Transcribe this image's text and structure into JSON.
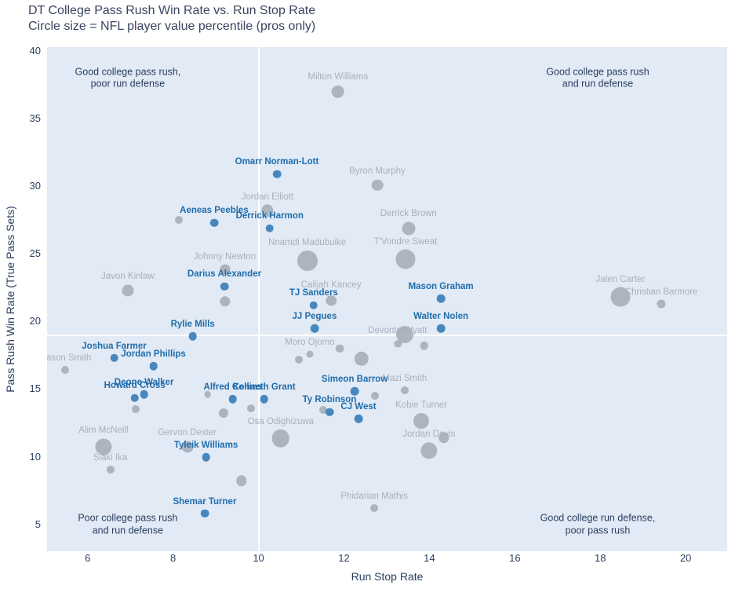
{
  "title": "DT College Pass Rush Win Rate vs. Run Stop Rate",
  "subtitle": "Circle size = NFL player value percentile (pros only)",
  "chart_data": {
    "type": "scatter",
    "xlabel": "Run Stop Rate",
    "ylabel": "Pass Rush Win Rate (True Pass Sets)",
    "x_range": [
      5.05,
      20.97
    ],
    "y_range": [
      3.0,
      40.3
    ],
    "x_ticks": [
      6,
      8,
      10,
      12,
      14,
      16,
      18,
      20
    ],
    "y_ticks": [
      5,
      10,
      15,
      20,
      25,
      30,
      35,
      40
    ],
    "grid": false,
    "legend": "none",
    "dividers": {
      "x": 10.0,
      "y": 19.0
    },
    "colors": {
      "plot_bg": "#e1eaf5",
      "prospect_dot": "#4787bd",
      "pro_dot": "#a2aab5",
      "prospect_label": "#1f6cab",
      "pro_label": "#a9b0bc",
      "axis_text": "#2a3f5f",
      "divider_line": "#ffffff"
    },
    "annotations": [
      {
        "text": "Good college pass rush,\npoor run defense",
        "x": 6.94,
        "y": 38.0
      },
      {
        "text": "Good college pass rush\nand run defense",
        "x": 17.94,
        "y": 38.0
      },
      {
        "text": "Poor college pass rush\nand run defense",
        "x": 6.94,
        "y": 4.95
      },
      {
        "text": "Good college run defense,\npoor pass rush",
        "x": 17.94,
        "y": 4.95
      }
    ],
    "points": [
      {
        "name": "Milton Williams",
        "group": "pro",
        "x": 11.86,
        "y": 37.0,
        "r": 8.3
      },
      {
        "name": "Byron Murphy",
        "group": "pro",
        "x": 12.78,
        "y": 30.1,
        "r": 7.3
      },
      {
        "name": "Jordan Elliott",
        "group": "pro",
        "x": 10.21,
        "y": 28.2,
        "r": 7.7
      },
      {
        "name": "Derrick Brown",
        "group": "pro",
        "x": 13.51,
        "y": 26.9,
        "r": 8.5
      },
      {
        "name": "Nnamdi Madubuike",
        "group": "pro",
        "x": 11.14,
        "y": 24.5,
        "r": 13.0
      },
      {
        "name": "T'Vondre Sweat",
        "group": "pro",
        "x": 13.44,
        "y": 24.6,
        "r": 12.5
      },
      {
        "name": "Johnny Newton",
        "group": "pro",
        "x": 9.21,
        "y": 23.85,
        "r": 6.5
      },
      {
        "name": "Javon Kinlaw",
        "group": "pro",
        "x": 6.94,
        "y": 22.3,
        "r": 7.5
      },
      {
        "name": "Calijah Kancey",
        "group": "pro",
        "x": 11.7,
        "y": 21.55,
        "r": 6.7,
        "ldy": -3
      },
      {
        "name": "Jalen Carter",
        "group": "pro",
        "x": 18.47,
        "y": 21.8,
        "r": 12.5
      },
      {
        "name": "Christian Barmore",
        "group": "pro",
        "x": 19.43,
        "y": 21.3,
        "r": 5.5
      },
      {
        "name": "Devonte Wyatt",
        "group": "pro",
        "x": 13.42,
        "y": 19.05,
        "r": 11.0,
        "ldx": -9,
        "ldy": 16
      },
      {
        "name": "Moro Ojomo",
        "group": "pro",
        "x": 11.2,
        "y": 17.6,
        "r": 4.5
      },
      {
        "name": "Mason Smith",
        "group": "pro",
        "x": 5.47,
        "y": 16.45,
        "r": 5.0
      },
      {
        "name": "Mazi Smith",
        "group": "pro",
        "x": 13.42,
        "y": 14.9,
        "r": 5.0
      },
      {
        "name": "Kobie Turner",
        "group": "pro",
        "x": 13.81,
        "y": 12.65,
        "r": 10.0
      },
      {
        "name": "Osa Odighizuwa",
        "group": "pro",
        "x": 10.52,
        "y": 11.35,
        "r": 11.3
      },
      {
        "name": "Jordan Davis",
        "group": "pro",
        "x": 13.99,
        "y": 10.45,
        "r": 10.7
      },
      {
        "name": "Gervon Dexter",
        "group": "pro",
        "x": 8.33,
        "y": 10.75,
        "r": 7.5
      },
      {
        "name": "Alim McNeill",
        "group": "pro",
        "x": 6.37,
        "y": 10.75,
        "r": 10.5
      },
      {
        "name": "Siaki Ika",
        "group": "pro",
        "x": 6.53,
        "y": 9.05,
        "r": 5.0
      },
      {
        "name": "Phidarian Mathis",
        "group": "pro",
        "x": 12.71,
        "y": 6.2,
        "r": 5.0
      },
      {
        "name": "",
        "group": "pro",
        "x": 8.13,
        "y": 27.5,
        "r": 5.0
      },
      {
        "name": "",
        "group": "pro",
        "x": 9.21,
        "y": 21.5,
        "r": 6.7
      },
      {
        "name": "",
        "group": "pro",
        "x": 11.9,
        "y": 18.0,
        "r": 5.3
      },
      {
        "name": "",
        "group": "pro",
        "x": 12.41,
        "y": 17.25,
        "r": 9.2
      },
      {
        "name": "",
        "group": "pro",
        "x": 10.94,
        "y": 17.2,
        "r": 5.0
      },
      {
        "name": "",
        "group": "pro",
        "x": 13.26,
        "y": 18.35,
        "r": 4.7
      },
      {
        "name": "",
        "group": "pro",
        "x": 13.88,
        "y": 18.2,
        "r": 5.3
      },
      {
        "name": "",
        "group": "pro",
        "x": 12.72,
        "y": 14.5,
        "r": 5.0
      },
      {
        "name": "",
        "group": "pro",
        "x": 8.81,
        "y": 14.6,
        "r": 4.3
      },
      {
        "name": "",
        "group": "pro",
        "x": 9.18,
        "y": 13.2,
        "r": 6.0
      },
      {
        "name": "",
        "group": "pro",
        "x": 9.82,
        "y": 13.6,
        "r": 5.0
      },
      {
        "name": "",
        "group": "pro",
        "x": 11.51,
        "y": 13.45,
        "r": 5.0
      },
      {
        "name": "",
        "group": "pro",
        "x": 7.12,
        "y": 13.5,
        "r": 5.0
      },
      {
        "name": "",
        "group": "pro",
        "x": 14.34,
        "y": 11.4,
        "r": 6.7
      },
      {
        "name": "",
        "group": "pro",
        "x": 9.6,
        "y": 8.2,
        "r": 6.7
      },
      {
        "name": "Omarr Norman-Lott",
        "group": "prospect",
        "x": 10.43,
        "y": 30.9,
        "r": 5.3
      },
      {
        "name": "Aeneas Peebles",
        "group": "prospect",
        "x": 8.96,
        "y": 27.3,
        "r": 5.3
      },
      {
        "name": "Derrick Harmon",
        "group": "prospect",
        "x": 10.26,
        "y": 26.9,
        "r": 5.3
      },
      {
        "name": "Darius Alexander",
        "group": "prospect",
        "x": 9.2,
        "y": 22.6,
        "r": 5.3
      },
      {
        "name": "TJ Sanders",
        "group": "prospect",
        "x": 11.29,
        "y": 21.2,
        "r": 5.3
      },
      {
        "name": "Mason Graham",
        "group": "prospect",
        "x": 14.27,
        "y": 21.7,
        "r": 5.3
      },
      {
        "name": "JJ Pegues",
        "group": "prospect",
        "x": 11.31,
        "y": 19.5,
        "r": 5.3
      },
      {
        "name": "Walter Nolen",
        "group": "prospect",
        "x": 14.27,
        "y": 19.5,
        "r": 5.3
      },
      {
        "name": "Rylie Mills",
        "group": "prospect",
        "x": 8.46,
        "y": 18.9,
        "r": 5.3
      },
      {
        "name": "Joshua Farmer",
        "group": "prospect",
        "x": 6.62,
        "y": 17.3,
        "r": 5.3
      },
      {
        "name": "Jordan Phillips",
        "group": "prospect",
        "x": 7.54,
        "y": 16.7,
        "r": 5.3
      },
      {
        "name": "Deone Walker",
        "group": "prospect",
        "x": 7.32,
        "y": 14.6,
        "r": 5.3
      },
      {
        "name": "Howard Cross",
        "group": "prospect",
        "x": 7.1,
        "y": 14.35,
        "r": 5.3
      },
      {
        "name": "Alfred Collins",
        "group": "prospect",
        "x": 9.4,
        "y": 14.25,
        "r": 5.3
      },
      {
        "name": "Kenneth Grant",
        "group": "prospect",
        "x": 10.13,
        "y": 14.25,
        "r": 5.3
      },
      {
        "name": "Simeon Barrow",
        "group": "prospect",
        "x": 12.25,
        "y": 14.85,
        "r": 5.3
      },
      {
        "name": "Ty Robinson",
        "group": "prospect",
        "x": 11.66,
        "y": 13.3,
        "r": 5.3
      },
      {
        "name": "CJ West",
        "group": "prospect",
        "x": 12.34,
        "y": 12.8,
        "r": 5.3
      },
      {
        "name": "Tyleik Williams",
        "group": "prospect",
        "x": 8.77,
        "y": 9.95,
        "r": 5.3
      },
      {
        "name": "Shemar Turner",
        "group": "prospect",
        "x": 8.74,
        "y": 5.8,
        "r": 5.3
      }
    ]
  }
}
